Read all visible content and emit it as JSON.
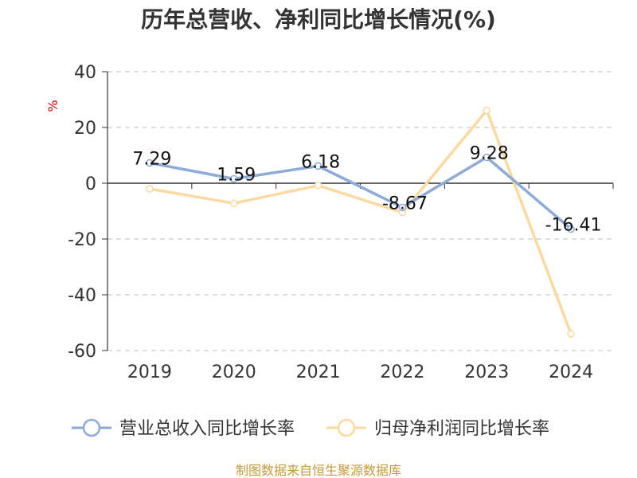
{
  "chart_data": {
    "type": "line",
    "title": "历年总营收、净利同比增长情况(%)",
    "ylabel": "%",
    "x": [
      "2019",
      "2020",
      "2021",
      "2022",
      "2023",
      "2024"
    ],
    "ylim": [
      -60,
      40
    ],
    "yticks": [
      40,
      20,
      0,
      -20,
      -40,
      -60
    ],
    "grid": true,
    "legend_position": "bottom",
    "series": [
      {
        "name": "营业总收入同比增长率",
        "color": "#8eaad8",
        "values": [
          7.29,
          1.59,
          6.18,
          -8.67,
          9.28,
          -16.41
        ],
        "labels": [
          "7.29",
          "1.59",
          "6.18",
          "-8.67",
          "9.28",
          "-16.41"
        ]
      },
      {
        "name": "归母净利润同比增长率",
        "color": "#fbd9a0",
        "values": [
          -2.0,
          -7.2,
          -0.8,
          -10.5,
          26.1,
          -54.0
        ]
      }
    ]
  },
  "source": "制图数据来自恒生聚源数据库"
}
